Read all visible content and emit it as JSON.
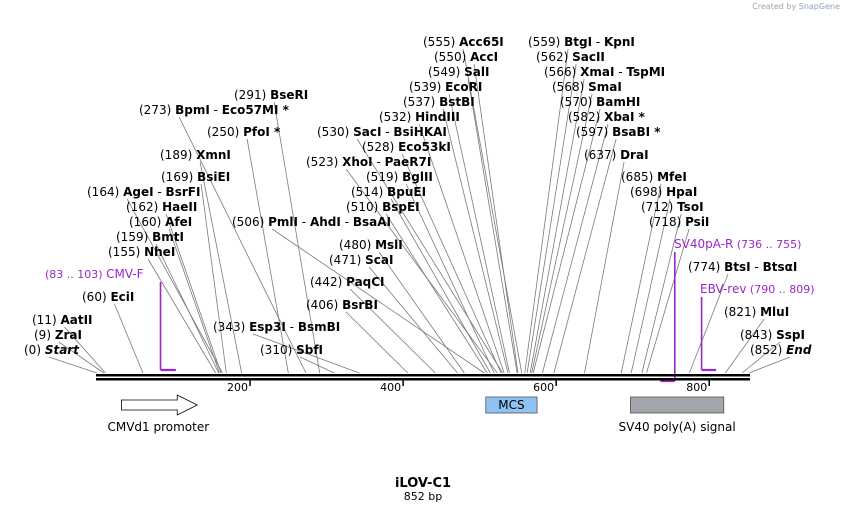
{
  "credit": {
    "prefix": "Created by",
    "brand": "SnapGene"
  },
  "map": {
    "title": "iLOV-C1",
    "length_label": "852 bp",
    "bp_total": 852,
    "axis_ticks": [
      "200",
      "400",
      "600",
      "800"
    ],
    "sites": [
      {
        "pos": "(0)",
        "bp": 0,
        "names": [
          "Start"
        ],
        "italic": true
      },
      {
        "pos": "(9)",
        "bp": 9,
        "names": [
          "ZraI"
        ]
      },
      {
        "pos": "(11)",
        "bp": 11,
        "names": [
          "AatII"
        ]
      },
      {
        "pos": "(60)",
        "bp": 60,
        "names": [
          "EciI"
        ]
      },
      {
        "pos": "(155)",
        "bp": 155,
        "names": [
          "NheI"
        ]
      },
      {
        "pos": "(159)",
        "bp": 159,
        "names": [
          "BmtI"
        ]
      },
      {
        "pos": "(160)",
        "bp": 160,
        "names": [
          "AfeI"
        ]
      },
      {
        "pos": "(162)",
        "bp": 162,
        "names": [
          "HaeII"
        ]
      },
      {
        "pos": "(164)",
        "bp": 164,
        "names": [
          "AgeI",
          "BsrFI"
        ]
      },
      {
        "pos": "(169)",
        "bp": 169,
        "names": [
          "BsiEI"
        ]
      },
      {
        "pos": "(189)",
        "bp": 189,
        "names": [
          "XmnI"
        ]
      },
      {
        "pos": "(250)",
        "bp": 250,
        "names": [
          "PfoI *"
        ]
      },
      {
        "pos": "(273)",
        "bp": 273,
        "names": [
          "BpmI",
          "Eco57MI *"
        ]
      },
      {
        "pos": "(291)",
        "bp": 291,
        "names": [
          "BseRI"
        ]
      },
      {
        "pos": "(310)",
        "bp": 310,
        "names": [
          "SbfI"
        ]
      },
      {
        "pos": "(343)",
        "bp": 343,
        "names": [
          "Esp3I",
          "BsmBI"
        ]
      },
      {
        "pos": "(406)",
        "bp": 406,
        "names": [
          "BsrBI"
        ]
      },
      {
        "pos": "(442)",
        "bp": 442,
        "names": [
          "PaqCI"
        ]
      },
      {
        "pos": "(471)",
        "bp": 471,
        "names": [
          "ScaI"
        ]
      },
      {
        "pos": "(480)",
        "bp": 480,
        "names": [
          "MslI"
        ]
      },
      {
        "pos": "(506)",
        "bp": 506,
        "names": [
          "PmlI",
          "AhdI",
          "BsaAI"
        ]
      },
      {
        "pos": "(510)",
        "bp": 510,
        "names": [
          "BspEI"
        ]
      },
      {
        "pos": "(514)",
        "bp": 514,
        "names": [
          "BpuEI"
        ]
      },
      {
        "pos": "(519)",
        "bp": 519,
        "names": [
          "BglII"
        ]
      },
      {
        "pos": "(523)",
        "bp": 523,
        "names": [
          "XhoI",
          "PaeR7I"
        ]
      },
      {
        "pos": "(528)",
        "bp": 528,
        "names": [
          "Eco53kI"
        ]
      },
      {
        "pos": "(530)",
        "bp": 530,
        "names": [
          "SacI",
          "BsiHKAI"
        ]
      },
      {
        "pos": "(532)",
        "bp": 532,
        "names": [
          "HindIII"
        ]
      },
      {
        "pos": "(537)",
        "bp": 537,
        "names": [
          "BstBI"
        ]
      },
      {
        "pos": "(539)",
        "bp": 539,
        "names": [
          "EcoRI"
        ]
      },
      {
        "pos": "(549)",
        "bp": 549,
        "names": [
          "SalI"
        ]
      },
      {
        "pos": "(550)",
        "bp": 550,
        "names": [
          "AccI"
        ]
      },
      {
        "pos": "(555)",
        "bp": 555,
        "names": [
          "Acc65I"
        ]
      },
      {
        "pos": "(559)",
        "bp": 559,
        "names": [
          "BtgI",
          "KpnI"
        ]
      },
      {
        "pos": "(562)",
        "bp": 562,
        "names": [
          "SacII"
        ]
      },
      {
        "pos": "(566)",
        "bp": 566,
        "names": [
          "XmaI",
          "TspMI"
        ]
      },
      {
        "pos": "(568)",
        "bp": 568,
        "names": [
          "SmaI"
        ]
      },
      {
        "pos": "(570)",
        "bp": 570,
        "names": [
          "BamHI"
        ]
      },
      {
        "pos": "(582)",
        "bp": 582,
        "names": [
          "XbaI *"
        ]
      },
      {
        "pos": "(597)",
        "bp": 597,
        "names": [
          "BsaBI *"
        ]
      },
      {
        "pos": "(637)",
        "bp": 637,
        "names": [
          "DraI"
        ]
      },
      {
        "pos": "(685)",
        "bp": 685,
        "names": [
          "MfeI"
        ]
      },
      {
        "pos": "(698)",
        "bp": 698,
        "names": [
          "HpaI"
        ]
      },
      {
        "pos": "(712)",
        "bp": 712,
        "names": [
          "TsoI"
        ]
      },
      {
        "pos": "(718)",
        "bp": 718,
        "names": [
          "PsiI"
        ]
      },
      {
        "pos": "(774)",
        "bp": 774,
        "names": [
          "BtsI",
          "BtsαI"
        ]
      },
      {
        "pos": "(821)",
        "bp": 821,
        "names": [
          "MluI"
        ]
      },
      {
        "pos": "(843)",
        "bp": 843,
        "names": [
          "SspI"
        ]
      },
      {
        "pos": "(852)",
        "bp": 852,
        "names": [
          "End"
        ],
        "italic": true
      }
    ],
    "primers": [
      {
        "name": "CMV-F",
        "range": "(83 .. 103)",
        "start": 83,
        "end": 103,
        "direction": "forward"
      },
      {
        "name": "SV40pA-R",
        "range": "(736 .. 755)",
        "start": 736,
        "end": 755,
        "direction": "reverse"
      },
      {
        "name": "EBV-rev",
        "range": "(790 .. 809)",
        "start": 790,
        "end": 809,
        "direction": "forward"
      }
    ],
    "features": [
      {
        "name": "CMVd1 promoter",
        "start": 32,
        "end": 131,
        "shape": "arrow",
        "color": "#ffffff"
      },
      {
        "name": "MCS",
        "start": 508,
        "end": 575,
        "shape": "box",
        "color": "#8ec2f2"
      },
      {
        "name": "SV40 poly(A) signal",
        "start": 697,
        "end": 819,
        "shape": "box",
        "color": "#a3a6ad"
      }
    ],
    "colors": {
      "primer": "#9c27c9",
      "line": "#000000",
      "leader": "#7a7a7a"
    }
  }
}
